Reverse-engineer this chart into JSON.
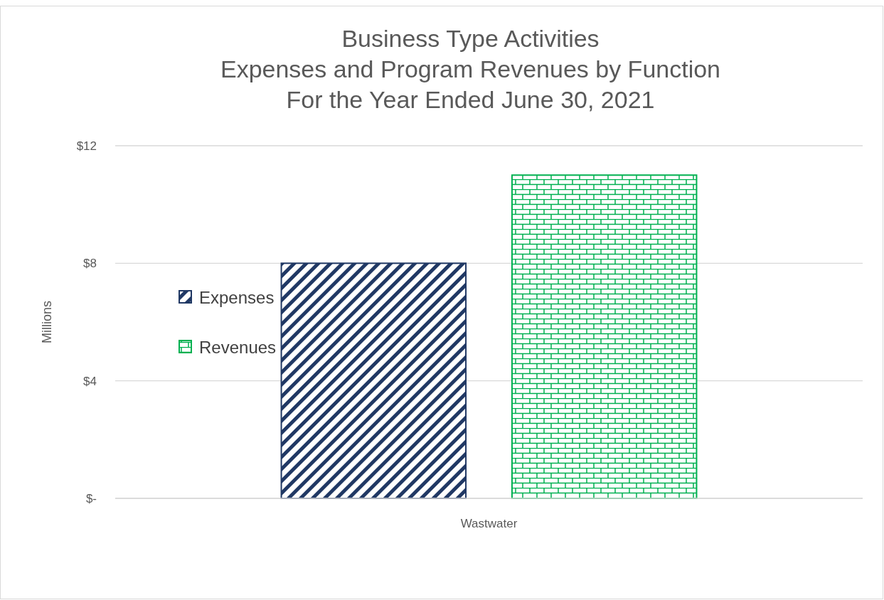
{
  "chart_data": {
    "type": "bar",
    "title": "Business Type Activities\nExpenses and Program Revenues by Function\nFor the Year Ended June 30, 2021",
    "ylabel": "Millions",
    "categories": [
      "Wastwater"
    ],
    "series": [
      {
        "name": "Expenses",
        "color": "#203864",
        "values": [
          8.0
        ]
      },
      {
        "name": "Revenues",
        "color": "#00b050",
        "values": [
          11.0
        ]
      }
    ],
    "ylim": [
      0,
      12
    ],
    "yticks": [
      {
        "value": 0,
        "label": "$-"
      },
      {
        "value": 4,
        "label": "$4"
      },
      {
        "value": 8,
        "label": "$8"
      },
      {
        "value": 12,
        "label": "$12"
      }
    ],
    "grid": "y",
    "legend": "left"
  }
}
